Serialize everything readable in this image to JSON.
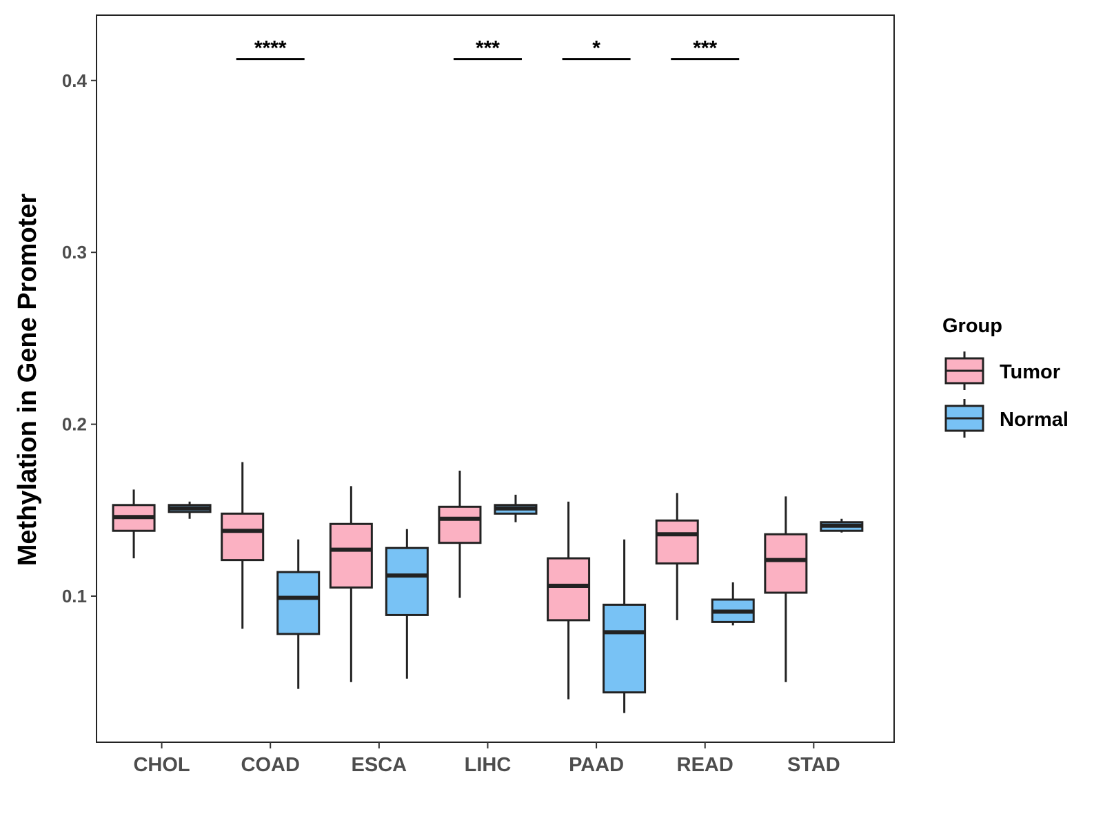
{
  "chart_data": {
    "type": "boxplot",
    "title": "",
    "xlabel": "",
    "ylabel": "Methylation in Gene Promoter",
    "ylim": [
      0.015,
      0.438
    ],
    "yticks": [
      0.1,
      0.2,
      0.3,
      0.4
    ],
    "ytick_labels": [
      "0.1",
      "0.2",
      "0.3",
      "0.4"
    ],
    "categories": [
      "CHOL",
      "COAD",
      "ESCA",
      "LIHC",
      "PAAD",
      "READ",
      "STAD"
    ],
    "grid": false,
    "legend": {
      "title": "Group",
      "position": "right",
      "entries": [
        {
          "name": "Tumor",
          "color": "#fbb1c2"
        },
        {
          "name": "Normal",
          "color": "#78c2f5"
        }
      ]
    },
    "series": [
      {
        "name": "Tumor",
        "color": "#fbb1c2",
        "boxes": [
          {
            "category": "CHOL",
            "min": 0.122,
            "q1": 0.138,
            "median": 0.146,
            "q3": 0.153,
            "max": 0.162
          },
          {
            "category": "COAD",
            "min": 0.081,
            "q1": 0.121,
            "median": 0.138,
            "q3": 0.148,
            "max": 0.178
          },
          {
            "category": "ESCA",
            "min": 0.05,
            "q1": 0.105,
            "median": 0.127,
            "q3": 0.142,
            "max": 0.164
          },
          {
            "category": "LIHC",
            "min": 0.099,
            "q1": 0.131,
            "median": 0.145,
            "q3": 0.152,
            "max": 0.173
          },
          {
            "category": "PAAD",
            "min": 0.04,
            "q1": 0.086,
            "median": 0.106,
            "q3": 0.122,
            "max": 0.155
          },
          {
            "category": "READ",
            "min": 0.086,
            "q1": 0.119,
            "median": 0.136,
            "q3": 0.144,
            "max": 0.16
          },
          {
            "category": "STAD",
            "min": 0.05,
            "q1": 0.102,
            "median": 0.121,
            "q3": 0.136,
            "max": 0.158
          }
        ]
      },
      {
        "name": "Normal",
        "color": "#78c2f5",
        "boxes": [
          {
            "category": "CHOL",
            "min": 0.145,
            "q1": 0.149,
            "median": 0.151,
            "q3": 0.153,
            "max": 0.155
          },
          {
            "category": "COAD",
            "min": 0.046,
            "q1": 0.078,
            "median": 0.099,
            "q3": 0.114,
            "max": 0.133
          },
          {
            "category": "ESCA",
            "min": 0.052,
            "q1": 0.089,
            "median": 0.112,
            "q3": 0.128,
            "max": 0.139
          },
          {
            "category": "LIHC",
            "min": 0.143,
            "q1": 0.148,
            "median": 0.151,
            "q3": 0.153,
            "max": 0.159
          },
          {
            "category": "PAAD",
            "min": 0.032,
            "q1": 0.044,
            "median": 0.079,
            "q3": 0.095,
            "max": 0.133
          },
          {
            "category": "READ",
            "min": 0.083,
            "q1": 0.085,
            "median": 0.091,
            "q3": 0.098,
            "max": 0.108
          },
          {
            "category": "STAD",
            "min": 0.137,
            "q1": 0.138,
            "median": 0.141,
            "q3": 0.143,
            "max": 0.145
          }
        ]
      }
    ],
    "annotations": [
      {
        "category": "COAD",
        "label": "****",
        "y": 0.4125
      },
      {
        "category": "LIHC",
        "label": "***",
        "y": 0.4125
      },
      {
        "category": "PAAD",
        "label": "*",
        "y": 0.4125
      },
      {
        "category": "READ",
        "label": "***",
        "y": 0.4125
      }
    ]
  }
}
